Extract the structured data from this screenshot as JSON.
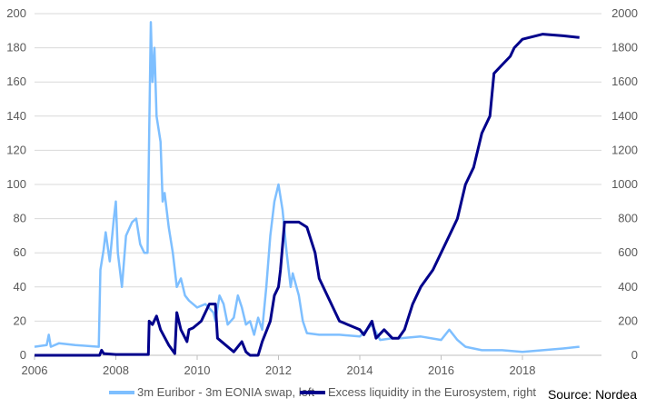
{
  "chart_data": {
    "type": "line",
    "title": "",
    "source": "Source: Nordea",
    "x_ticks": [
      "2006",
      "2008",
      "2010",
      "2012",
      "2014",
      "2016",
      "2018"
    ],
    "xlim": [
      2006,
      2019.9
    ],
    "y_left": {
      "ticks": [
        "0",
        "20",
        "40",
        "60",
        "80",
        "100",
        "120",
        "140",
        "160",
        "180",
        "200"
      ],
      "ylim": [
        0,
        200
      ]
    },
    "y_right": {
      "ticks": [
        "0",
        "200",
        "400",
        "600",
        "800",
        "1000",
        "1200",
        "1400",
        "1600",
        "1800",
        "2000"
      ],
      "ylim": [
        0,
        2000
      ]
    },
    "grid": true,
    "legend_position": "bottom",
    "series": [
      {
        "name": "3m Euribor - 3m EONIA swap, left",
        "axis": "left",
        "color": "#7ebfff",
        "x": [
          2006.0,
          2006.3,
          2006.35,
          2006.4,
          2006.6,
          2007.0,
          2007.58,
          2007.62,
          2007.7,
          2007.75,
          2007.85,
          2007.95,
          2008.0,
          2008.05,
          2008.15,
          2008.25,
          2008.4,
          2008.5,
          2008.6,
          2008.7,
          2008.78,
          2008.82,
          2008.86,
          2008.9,
          2008.95,
          2009.0,
          2009.1,
          2009.15,
          2009.2,
          2009.3,
          2009.4,
          2009.5,
          2009.6,
          2009.7,
          2009.8,
          2010.0,
          2010.2,
          2010.4,
          2010.45,
          2010.55,
          2010.65,
          2010.75,
          2010.9,
          2011.0,
          2011.1,
          2011.2,
          2011.3,
          2011.4,
          2011.5,
          2011.6,
          2011.7,
          2011.8,
          2011.9,
          2012.0,
          2012.1,
          2012.2,
          2012.3,
          2012.35,
          2012.5,
          2012.6,
          2012.7,
          2013.0,
          2013.5,
          2014.0,
          2014.3,
          2014.5,
          2014.8,
          2015.0,
          2015.5,
          2016.0,
          2016.2,
          2016.4,
          2016.6,
          2017.0,
          2017.5,
          2018.0,
          2018.5,
          2019.0,
          2019.4
        ],
        "values": [
          5,
          6,
          12,
          5,
          7,
          6,
          5,
          50,
          62,
          72,
          55,
          80,
          90,
          60,
          40,
          70,
          78,
          80,
          65,
          60,
          60,
          130,
          195,
          160,
          180,
          140,
          125,
          90,
          95,
          75,
          60,
          40,
          45,
          35,
          32,
          28,
          30,
          25,
          20,
          35,
          30,
          18,
          22,
          35,
          28,
          18,
          20,
          12,
          22,
          15,
          40,
          70,
          90,
          100,
          85,
          60,
          40,
          48,
          35,
          20,
          13,
          12,
          12,
          11,
          18,
          9,
          10,
          10,
          11,
          9,
          15,
          9,
          5,
          3,
          3,
          2,
          3,
          4,
          5
        ]
      },
      {
        "name": "Excess liquidity in the Eurosystem, right",
        "axis": "right",
        "color": "#00008b",
        "x": [
          2006.0,
          2007.6,
          2007.65,
          2007.7,
          2008.0,
          2008.5,
          2008.8,
          2008.82,
          2008.9,
          2009.0,
          2009.1,
          2009.3,
          2009.45,
          2009.5,
          2009.6,
          2009.75,
          2009.8,
          2009.9,
          2010.1,
          2010.3,
          2010.45,
          2010.5,
          2010.7,
          2010.9,
          2011.1,
          2011.2,
          2011.3,
          2011.5,
          2011.6,
          2011.8,
          2011.9,
          2012.0,
          2012.05,
          2012.15,
          2012.3,
          2012.5,
          2012.7,
          2012.9,
          2013.0,
          2013.3,
          2013.5,
          2013.8,
          2014.0,
          2014.1,
          2014.3,
          2014.4,
          2014.6,
          2014.8,
          2014.95,
          2015.1,
          2015.3,
          2015.5,
          2015.8,
          2016.0,
          2016.2,
          2016.4,
          2016.6,
          2016.8,
          2017.0,
          2017.2,
          2017.3,
          2017.5,
          2017.7,
          2017.8,
          2018.0,
          2018.5,
          2019.0,
          2019.4
        ],
        "values": [
          0,
          0,
          30,
          10,
          5,
          5,
          5,
          200,
          180,
          230,
          150,
          60,
          10,
          250,
          150,
          80,
          150,
          160,
          200,
          300,
          300,
          100,
          60,
          20,
          80,
          20,
          0,
          0,
          80,
          200,
          350,
          400,
          500,
          780,
          780,
          780,
          750,
          600,
          450,
          300,
          200,
          170,
          150,
          120,
          200,
          100,
          150,
          100,
          100,
          150,
          300,
          400,
          500,
          600,
          700,
          800,
          1000,
          1100,
          1300,
          1400,
          1650,
          1700,
          1750,
          1800,
          1850,
          1880,
          1870,
          1860
        ]
      }
    ]
  }
}
